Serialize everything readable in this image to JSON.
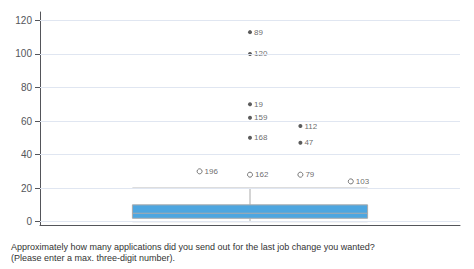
{
  "chart_data": {
    "type": "boxplot",
    "title": "Approximately how many applications did you send out for the last job change you wanted?",
    "subtitle": "(Please enter a max. three-digit number).",
    "box": {
      "whisker_low": 0,
      "q1": 2,
      "median": 5,
      "q3": 10,
      "whisker_high": 20
    },
    "color": "#4da6e0",
    "outliers": [
      {
        "marker": "open_circle",
        "color": "#555555",
        "points": [
          {
            "value": 28,
            "annotation": "162"
          },
          {
            "value": 28,
            "annotation": "79"
          },
          {
            "value": 30,
            "annotation": "196"
          },
          {
            "value": 24,
            "annotation": "103"
          }
        ]
      },
      {
        "marker": "dot",
        "color": "#333333",
        "points": [
          {
            "value": 50,
            "annotation": "168"
          },
          {
            "value": 47,
            "annotation": "47"
          },
          {
            "value": 57,
            "annotation": "112"
          },
          {
            "value": 62,
            "annotation": "159"
          },
          {
            "value": 70,
            "annotation": "19"
          },
          {
            "value": 100,
            "annotation": "120"
          },
          {
            "value": 113,
            "annotation": "89"
          }
        ]
      }
    ],
    "ylim": [
      -2,
      125
    ],
    "yticks": [
      0,
      20,
      40,
      60,
      80,
      100,
      120
    ],
    "grid": true,
    "tick_labels": "y"
  }
}
